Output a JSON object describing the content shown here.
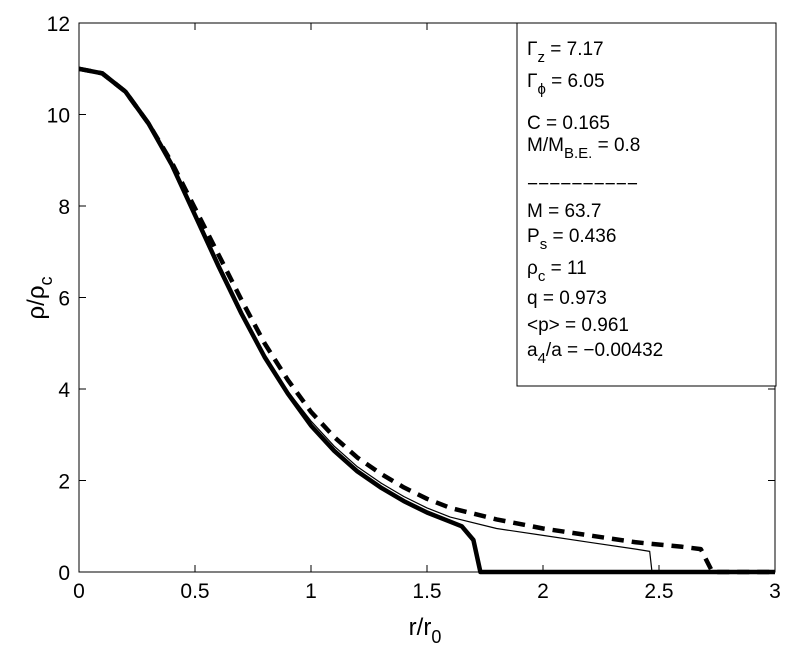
{
  "chart_data": {
    "type": "line",
    "title": "",
    "xlabel": {
      "base": "r/r",
      "sub": "0"
    },
    "ylabel": {
      "base": "ρ/ρ",
      "sub": "c"
    },
    "xlim": [
      0,
      3
    ],
    "ylim": [
      0,
      12
    ],
    "x_ticks": [
      "0",
      "0.5",
      "1",
      "1.5",
      "2",
      "2.5",
      "3"
    ],
    "y_ticks": [
      "0",
      "2",
      "4",
      "6",
      "8",
      "10",
      "12"
    ],
    "grid": false,
    "series": [
      {
        "style": "thick-solid",
        "color": "#000000",
        "x": [
          0,
          0.1,
          0.2,
          0.3,
          0.4,
          0.5,
          0.6,
          0.7,
          0.8,
          0.9,
          1.0,
          1.1,
          1.2,
          1.3,
          1.4,
          1.5,
          1.6,
          1.65,
          1.7,
          1.73,
          1.8,
          2.0,
          2.5,
          3.0
        ],
        "y": [
          11.0,
          10.9,
          10.5,
          9.8,
          8.9,
          7.8,
          6.7,
          5.65,
          4.7,
          3.9,
          3.2,
          2.65,
          2.2,
          1.85,
          1.55,
          1.3,
          1.1,
          1.0,
          0.7,
          0.0,
          0.0,
          0.0,
          0.0,
          0.0
        ]
      },
      {
        "style": "thin-solid",
        "color": "#000000",
        "x": [
          0,
          0.1,
          0.2,
          0.3,
          0.4,
          0.5,
          0.6,
          0.7,
          0.8,
          0.9,
          1.0,
          1.1,
          1.2,
          1.3,
          1.4,
          1.5,
          1.6,
          1.8,
          2.0,
          2.2,
          2.4,
          2.46,
          2.47
        ],
        "y": [
          11.0,
          10.9,
          10.5,
          9.8,
          8.9,
          7.85,
          6.75,
          5.7,
          4.75,
          3.95,
          3.3,
          2.75,
          2.3,
          1.95,
          1.65,
          1.4,
          1.2,
          0.95,
          0.8,
          0.65,
          0.5,
          0.45,
          0.0
        ]
      },
      {
        "style": "thick-dashed",
        "color": "#000000",
        "x": [
          0,
          0.1,
          0.2,
          0.3,
          0.4,
          0.5,
          0.6,
          0.7,
          0.8,
          0.9,
          1.0,
          1.1,
          1.2,
          1.3,
          1.4,
          1.5,
          1.6,
          1.8,
          2.0,
          2.2,
          2.4,
          2.6,
          2.68,
          2.73,
          2.8,
          3.0
        ],
        "y": [
          11.0,
          10.9,
          10.5,
          9.8,
          8.95,
          7.95,
          6.95,
          5.95,
          5.0,
          4.2,
          3.5,
          2.95,
          2.5,
          2.15,
          1.85,
          1.6,
          1.4,
          1.15,
          0.95,
          0.8,
          0.65,
          0.55,
          0.5,
          0.0,
          0.0,
          0.0
        ]
      }
    ],
    "annotation_box": {
      "top_lines": [
        {
          "base": "Γ",
          "sub": "z",
          "rest": " = 7.17"
        },
        {
          "base": "Γ",
          "sub": "ϕ",
          "rest": " = 6.05"
        },
        {
          "base": "C = 0.165",
          "sub": "",
          "rest": ""
        },
        {
          "base": "M/M",
          "sub": "B.E.",
          "rest": " = 0.8"
        }
      ],
      "separator": "−−−−−−−−−−",
      "bottom_lines": [
        {
          "base": "M = 63.7",
          "sub": "",
          "rest": ""
        },
        {
          "base": "P",
          "sub": "s",
          "rest": " = 0.436"
        },
        {
          "base": "ρ",
          "sub": "c",
          "rest": " = 11"
        },
        {
          "base": "q = 0.973",
          "sub": "",
          "rest": ""
        },
        {
          "base": "<p> = 0.961",
          "sub": "",
          "rest": ""
        },
        {
          "base": "a",
          "sub": "4",
          "rest": "/a = −0.00432"
        }
      ]
    }
  }
}
